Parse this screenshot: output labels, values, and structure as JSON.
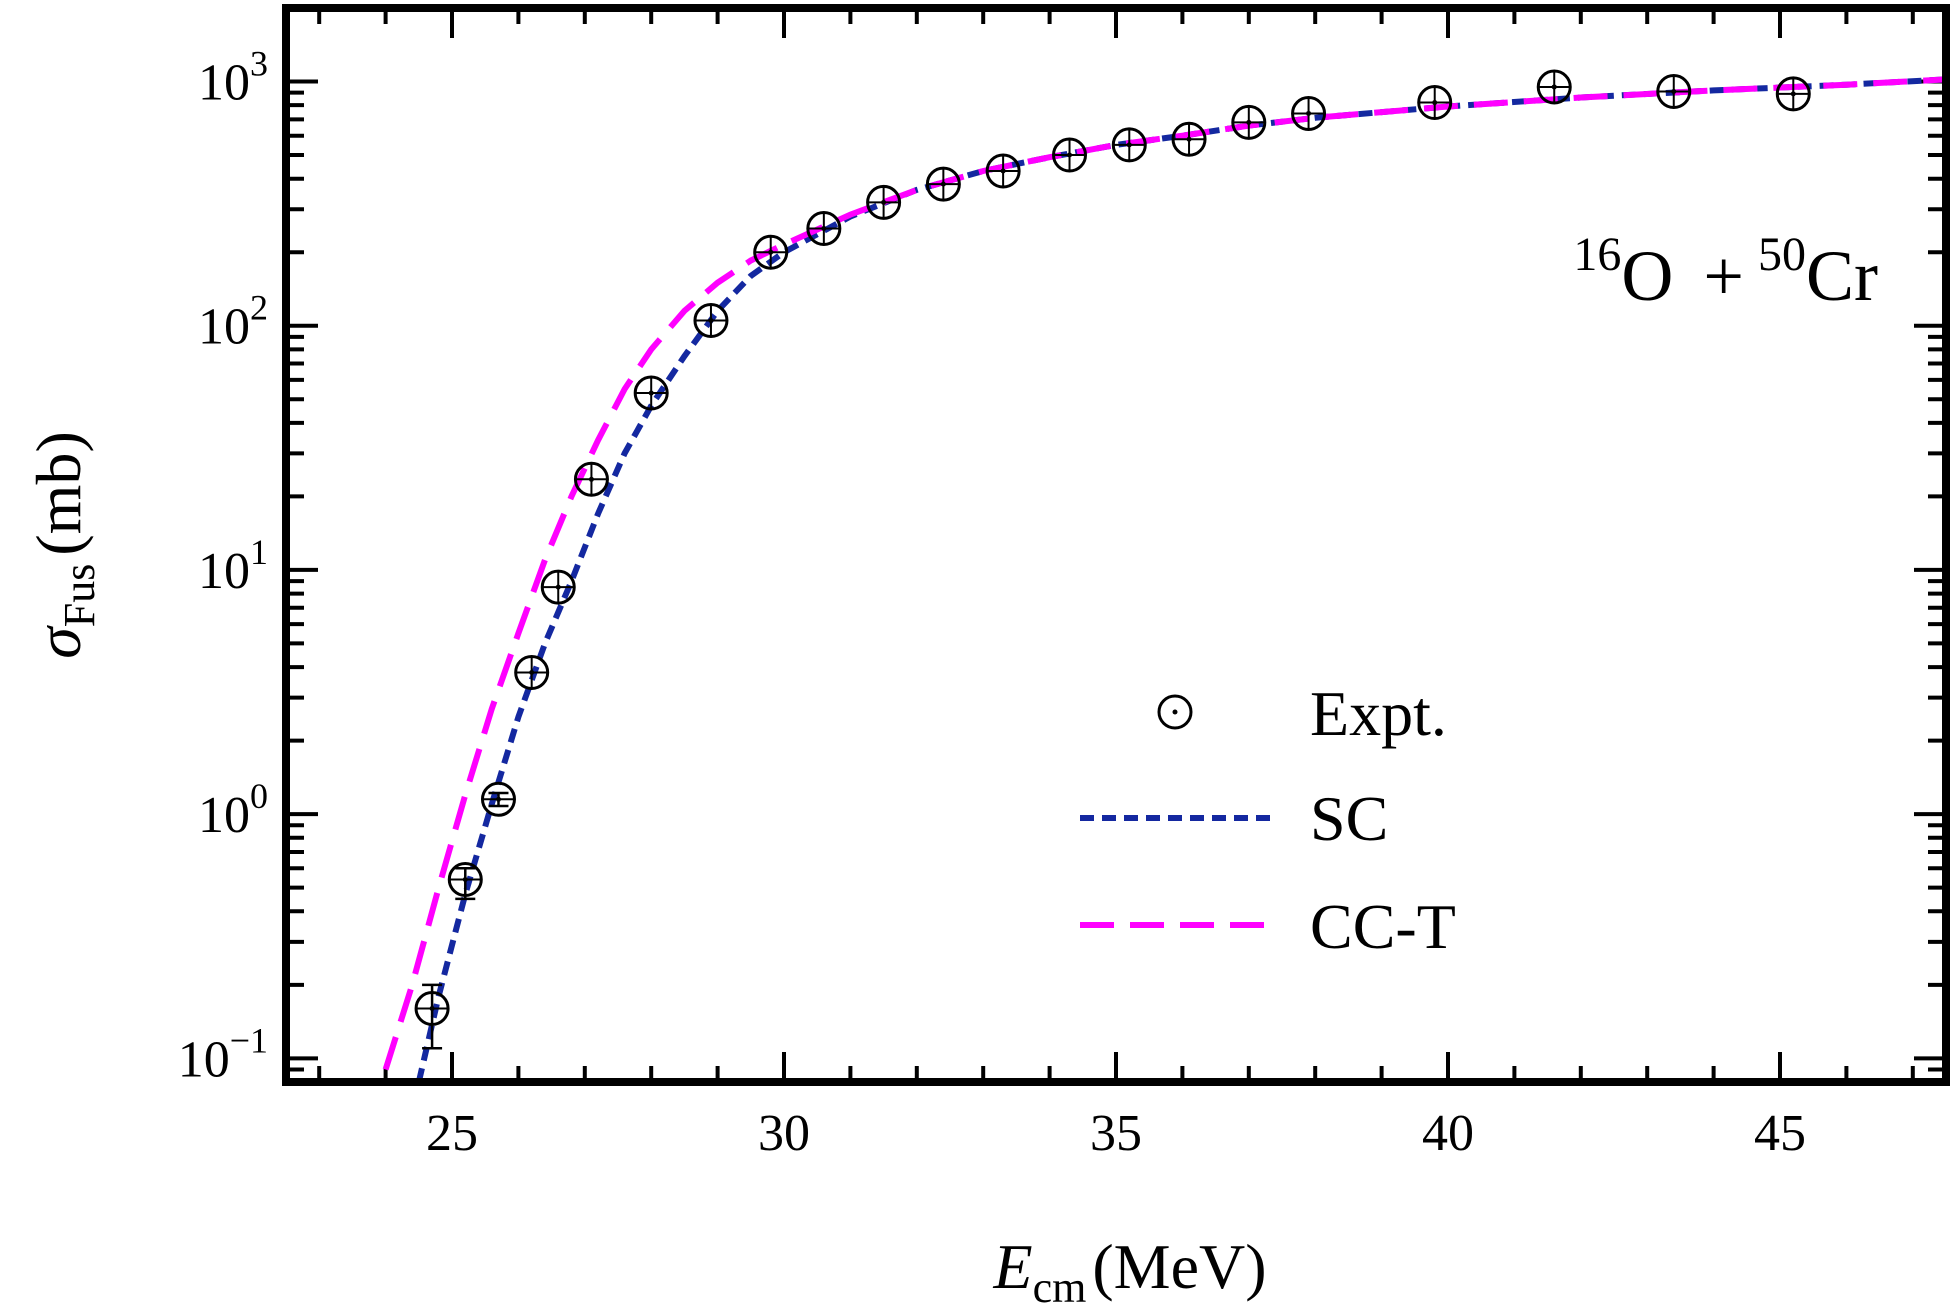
{
  "chart_data": {
    "type": "scatter",
    "annotation": {
      "A1": "16",
      "E1": "O",
      "A2": "50",
      "E2": "Cr",
      "plus": "+"
    },
    "xlabel": {
      "main": "E",
      "sub": "cm",
      "unit": "(MeV)"
    },
    "ylabel": {
      "main": "σ",
      "sub": "Fus",
      "unit": "(mb)"
    },
    "xlim": [
      22.5,
      47.5
    ],
    "ylim": [
      0.08,
      2000
    ],
    "yscale": "log",
    "x_ticks": [
      {
        "value": 25,
        "label": "25"
      },
      {
        "value": 30,
        "label": "30"
      },
      {
        "value": 35,
        "label": "35"
      },
      {
        "value": 40,
        "label": "40"
      },
      {
        "value": 45,
        "label": "45"
      }
    ],
    "y_ticks": [
      {
        "value": 0.1,
        "base": "10",
        "exp": "−1"
      },
      {
        "value": 1,
        "base": "10",
        "exp": "0"
      },
      {
        "value": 10,
        "base": "10",
        "exp": "1"
      },
      {
        "value": 100,
        "base": "10",
        "exp": "2"
      },
      {
        "value": 1000,
        "base": "10",
        "exp": "3"
      }
    ],
    "legend": {
      "position": "center-right"
    },
    "series": [
      {
        "name": "Expt.",
        "kind": "points",
        "color": "#000000",
        "points": [
          {
            "x": 24.7,
            "y": 0.16,
            "ylo": 0.11,
            "yhi": 0.2
          },
          {
            "x": 25.2,
            "y": 0.54,
            "ylo": 0.45,
            "yhi": 0.6
          },
          {
            "x": 25.7,
            "y": 1.15,
            "ylo": 1.08,
            "yhi": 1.22
          },
          {
            "x": 26.2,
            "y": 3.8
          },
          {
            "x": 26.6,
            "y": 8.5
          },
          {
            "x": 27.1,
            "y": 23.5
          },
          {
            "x": 28.0,
            "y": 53
          },
          {
            "x": 28.9,
            "y": 105
          },
          {
            "x": 29.8,
            "y": 200
          },
          {
            "x": 30.6,
            "y": 250
          },
          {
            "x": 31.5,
            "y": 320
          },
          {
            "x": 32.4,
            "y": 380
          },
          {
            "x": 33.3,
            "y": 430
          },
          {
            "x": 34.3,
            "y": 500
          },
          {
            "x": 35.2,
            "y": 550
          },
          {
            "x": 36.1,
            "y": 580
          },
          {
            "x": 37.0,
            "y": 680
          },
          {
            "x": 37.9,
            "y": 740
          },
          {
            "x": 39.8,
            "y": 820
          },
          {
            "x": 41.6,
            "y": 950
          },
          {
            "x": 43.4,
            "y": 910
          },
          {
            "x": 45.2,
            "y": 890
          }
        ]
      },
      {
        "name": "SC",
        "kind": "line",
        "color": "#1428a0",
        "dash": "short",
        "x": [
          24.5,
          24.8,
          25.2,
          25.6,
          26.0,
          26.4,
          26.8,
          27.2,
          27.6,
          28.0,
          28.5,
          29.0,
          29.5,
          30.0,
          31.0,
          32.0,
          33.0,
          34.0,
          35.0,
          36.0,
          37.0,
          38.0,
          40.0,
          42.0,
          44.0,
          46.0,
          47.5
        ],
        "y": [
          0.08,
          0.18,
          0.47,
          1.1,
          2.5,
          5.0,
          9.0,
          17,
          30,
          47,
          75,
          115,
          160,
          200,
          280,
          360,
          430,
          490,
          550,
          600,
          660,
          710,
          790,
          860,
          920,
          970,
          1020
        ]
      },
      {
        "name": "CC-T",
        "kind": "line",
        "color": "#ff00ff",
        "dash": "long",
        "x": [
          24.0,
          24.4,
          24.8,
          25.2,
          25.6,
          26.0,
          26.4,
          26.8,
          27.2,
          27.6,
          28.0,
          28.5,
          29.0,
          29.5,
          30.0,
          31.0,
          32.0,
          33.0,
          34.0,
          35.0,
          36.0,
          37.0,
          38.0,
          40.0,
          42.0,
          44.0,
          46.0,
          47.5
        ],
        "y": [
          0.09,
          0.2,
          0.5,
          1.2,
          2.7,
          5.5,
          11,
          20,
          34,
          55,
          80,
          115,
          150,
          185,
          215,
          285,
          360,
          430,
          490,
          550,
          600,
          660,
          710,
          790,
          860,
          920,
          970,
          1020
        ]
      }
    ]
  }
}
